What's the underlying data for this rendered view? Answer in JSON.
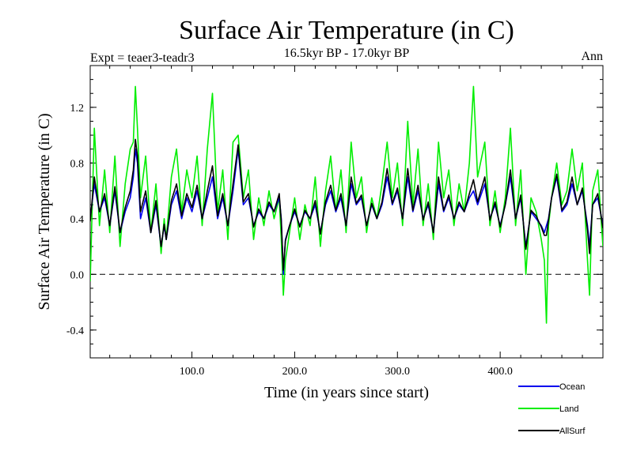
{
  "chart_data": {
    "type": "line",
    "title": "Surface Air Temperature (in C)",
    "subtitle": "16.5kyr BP - 17.0kyr BP",
    "left_label": "Expt = teaer3-teadr3",
    "right_label": "Ann",
    "xlabel": "Time (in years since start)",
    "ylabel": "Surface Air Temperature (in C)",
    "xlim": [
      1,
      500
    ],
    "ylim": [
      -0.6,
      1.5
    ],
    "x_ticks": [
      100,
      200,
      300,
      400
    ],
    "x_tick_labels": [
      "100.0",
      "200.0",
      "300.0",
      "400.0"
    ],
    "y_ticks": [
      -0.4,
      0.0,
      0.4,
      0.8,
      1.2
    ],
    "y_tick_labels": [
      "-0.4",
      "0.0",
      "0.4",
      "0.8",
      "1.2"
    ],
    "reference_line": {
      "y": 0.0,
      "style": "dashed"
    },
    "legend_position": "bottom-right",
    "series": [
      {
        "name": "Land",
        "color": "#00ee00",
        "x": [
          1,
          5,
          10,
          15,
          20,
          25,
          30,
          35,
          40,
          43,
          45,
          47,
          50,
          55,
          60,
          65,
          70,
          73,
          75,
          80,
          85,
          90,
          95,
          100,
          105,
          110,
          115,
          120,
          125,
          130,
          135,
          140,
          145,
          150,
          155,
          160,
          165,
          170,
          175,
          180,
          185,
          187,
          189,
          191,
          195,
          200,
          205,
          210,
          215,
          220,
          225,
          230,
          235,
          240,
          245,
          250,
          255,
          260,
          265,
          270,
          275,
          280,
          285,
          290,
          295,
          300,
          305,
          310,
          315,
          320,
          325,
          330,
          335,
          340,
          345,
          350,
          355,
          360,
          365,
          370,
          374,
          378,
          385,
          390,
          395,
          400,
          405,
          410,
          415,
          420,
          425,
          430,
          435,
          440,
          443,
          445,
          447,
          450,
          455,
          460,
          465,
          470,
          475,
          480,
          485,
          487,
          490,
          495,
          500
        ],
        "y": [
          -0.05,
          1.05,
          0.35,
          0.75,
          0.3,
          0.85,
          0.2,
          0.65,
          0.9,
          0.95,
          1.35,
          1.05,
          0.55,
          0.85,
          0.3,
          0.65,
          0.15,
          0.4,
          0.25,
          0.7,
          0.9,
          0.45,
          0.75,
          0.55,
          0.85,
          0.35,
          0.9,
          1.3,
          0.45,
          0.75,
          0.25,
          0.95,
          1.0,
          0.55,
          0.75,
          0.25,
          0.55,
          0.35,
          0.6,
          0.4,
          0.55,
          0.25,
          -0.15,
          0.1,
          0.3,
          0.55,
          0.25,
          0.5,
          0.35,
          0.7,
          0.2,
          0.6,
          0.85,
          0.45,
          0.75,
          0.3,
          0.95,
          0.55,
          0.7,
          0.3,
          0.55,
          0.4,
          0.65,
          0.95,
          0.55,
          0.8,
          0.35,
          1.1,
          0.5,
          0.9,
          0.35,
          0.65,
          0.25,
          0.95,
          0.55,
          0.75,
          0.35,
          0.65,
          0.45,
          0.8,
          1.35,
          0.7,
          0.95,
          0.35,
          0.6,
          0.3,
          0.55,
          1.05,
          0.35,
          0.75,
          0.0,
          0.55,
          0.45,
          0.25,
          0.1,
          -0.35,
          0.35,
          0.55,
          0.8,
          0.5,
          0.6,
          0.9,
          0.6,
          0.8,
          0.1,
          -0.15,
          0.6,
          0.75,
          0.2
        ]
      },
      {
        "name": "Ocean",
        "color": "#0000ee",
        "x": [
          1,
          5,
          10,
          15,
          20,
          25,
          30,
          35,
          40,
          43,
          45,
          47,
          50,
          55,
          60,
          65,
          70,
          73,
          75,
          80,
          85,
          90,
          95,
          100,
          105,
          110,
          115,
          120,
          125,
          130,
          135,
          140,
          145,
          150,
          155,
          160,
          165,
          170,
          175,
          180,
          185,
          187,
          189,
          191,
          195,
          200,
          205,
          210,
          215,
          220,
          225,
          230,
          235,
          240,
          245,
          250,
          255,
          260,
          265,
          270,
          275,
          280,
          285,
          290,
          295,
          300,
          305,
          310,
          315,
          320,
          325,
          330,
          335,
          340,
          345,
          350,
          355,
          360,
          365,
          370,
          374,
          378,
          385,
          390,
          395,
          400,
          405,
          410,
          415,
          420,
          425,
          430,
          435,
          440,
          443,
          445,
          447,
          450,
          455,
          460,
          465,
          470,
          475,
          480,
          485,
          487,
          490,
          495,
          500
        ],
        "y": [
          0.4,
          0.65,
          0.45,
          0.55,
          0.35,
          0.6,
          0.3,
          0.45,
          0.55,
          0.7,
          0.9,
          0.8,
          0.4,
          0.55,
          0.3,
          0.5,
          0.2,
          0.35,
          0.25,
          0.5,
          0.6,
          0.4,
          0.55,
          0.45,
          0.6,
          0.4,
          0.55,
          0.7,
          0.4,
          0.55,
          0.35,
          0.6,
          0.9,
          0.5,
          0.55,
          0.35,
          0.45,
          0.4,
          0.5,
          0.45,
          0.55,
          0.4,
          0.0,
          0.25,
          0.35,
          0.45,
          0.35,
          0.45,
          0.4,
          0.5,
          0.3,
          0.5,
          0.6,
          0.45,
          0.55,
          0.35,
          0.65,
          0.5,
          0.55,
          0.35,
          0.5,
          0.4,
          0.5,
          0.7,
          0.5,
          0.6,
          0.4,
          0.7,
          0.45,
          0.6,
          0.4,
          0.5,
          0.3,
          0.65,
          0.45,
          0.55,
          0.4,
          0.5,
          0.45,
          0.55,
          0.6,
          0.5,
          0.65,
          0.4,
          0.5,
          0.35,
          0.5,
          0.7,
          0.4,
          0.55,
          0.2,
          0.45,
          0.4,
          0.35,
          0.3,
          0.35,
          0.4,
          0.55,
          0.7,
          0.45,
          0.5,
          0.65,
          0.5,
          0.6,
          0.35,
          0.2,
          0.5,
          0.55,
          0.35
        ]
      },
      {
        "name": "AllSurf",
        "color": "#000000",
        "x": [
          1,
          5,
          10,
          15,
          20,
          25,
          30,
          35,
          40,
          43,
          45,
          47,
          50,
          55,
          60,
          65,
          70,
          73,
          75,
          80,
          85,
          90,
          95,
          100,
          105,
          110,
          115,
          120,
          125,
          130,
          135,
          140,
          145,
          150,
          155,
          160,
          165,
          170,
          175,
          180,
          185,
          187,
          189,
          191,
          195,
          200,
          205,
          210,
          215,
          220,
          225,
          230,
          235,
          240,
          245,
          250,
          255,
          260,
          265,
          270,
          275,
          280,
          285,
          290,
          295,
          300,
          305,
          310,
          315,
          320,
          325,
          330,
          335,
          340,
          345,
          350,
          355,
          360,
          365,
          370,
          374,
          378,
          385,
          390,
          395,
          400,
          405,
          410,
          415,
          420,
          425,
          430,
          435,
          440,
          443,
          445,
          447,
          450,
          455,
          460,
          465,
          470,
          475,
          480,
          485,
          487,
          490,
          495,
          500
        ],
        "y": [
          0.38,
          0.7,
          0.45,
          0.58,
          0.35,
          0.63,
          0.3,
          0.48,
          0.6,
          0.75,
          0.97,
          0.85,
          0.45,
          0.6,
          0.3,
          0.53,
          0.2,
          0.36,
          0.25,
          0.53,
          0.65,
          0.42,
          0.58,
          0.48,
          0.64,
          0.4,
          0.6,
          0.78,
          0.42,
          0.58,
          0.35,
          0.65,
          0.93,
          0.52,
          0.58,
          0.34,
          0.47,
          0.4,
          0.52,
          0.45,
          0.58,
          0.38,
          0.03,
          0.24,
          0.35,
          0.47,
          0.34,
          0.46,
          0.4,
          0.53,
          0.29,
          0.52,
          0.64,
          0.46,
          0.58,
          0.35,
          0.7,
          0.51,
          0.57,
          0.35,
          0.51,
          0.4,
          0.52,
          0.76,
          0.51,
          0.62,
          0.4,
          0.76,
          0.46,
          0.64,
          0.39,
          0.52,
          0.3,
          0.7,
          0.46,
          0.57,
          0.4,
          0.52,
          0.45,
          0.58,
          0.68,
          0.52,
          0.7,
          0.39,
          0.52,
          0.34,
          0.5,
          0.75,
          0.4,
          0.57,
          0.18,
          0.46,
          0.42,
          0.34,
          0.28,
          0.28,
          0.39,
          0.55,
          0.72,
          0.46,
          0.52,
          0.7,
          0.5,
          0.62,
          0.32,
          0.15,
          0.5,
          0.58,
          0.33
        ]
      }
    ],
    "legend_order": [
      "Ocean",
      "Land",
      "AllSurf"
    ]
  }
}
